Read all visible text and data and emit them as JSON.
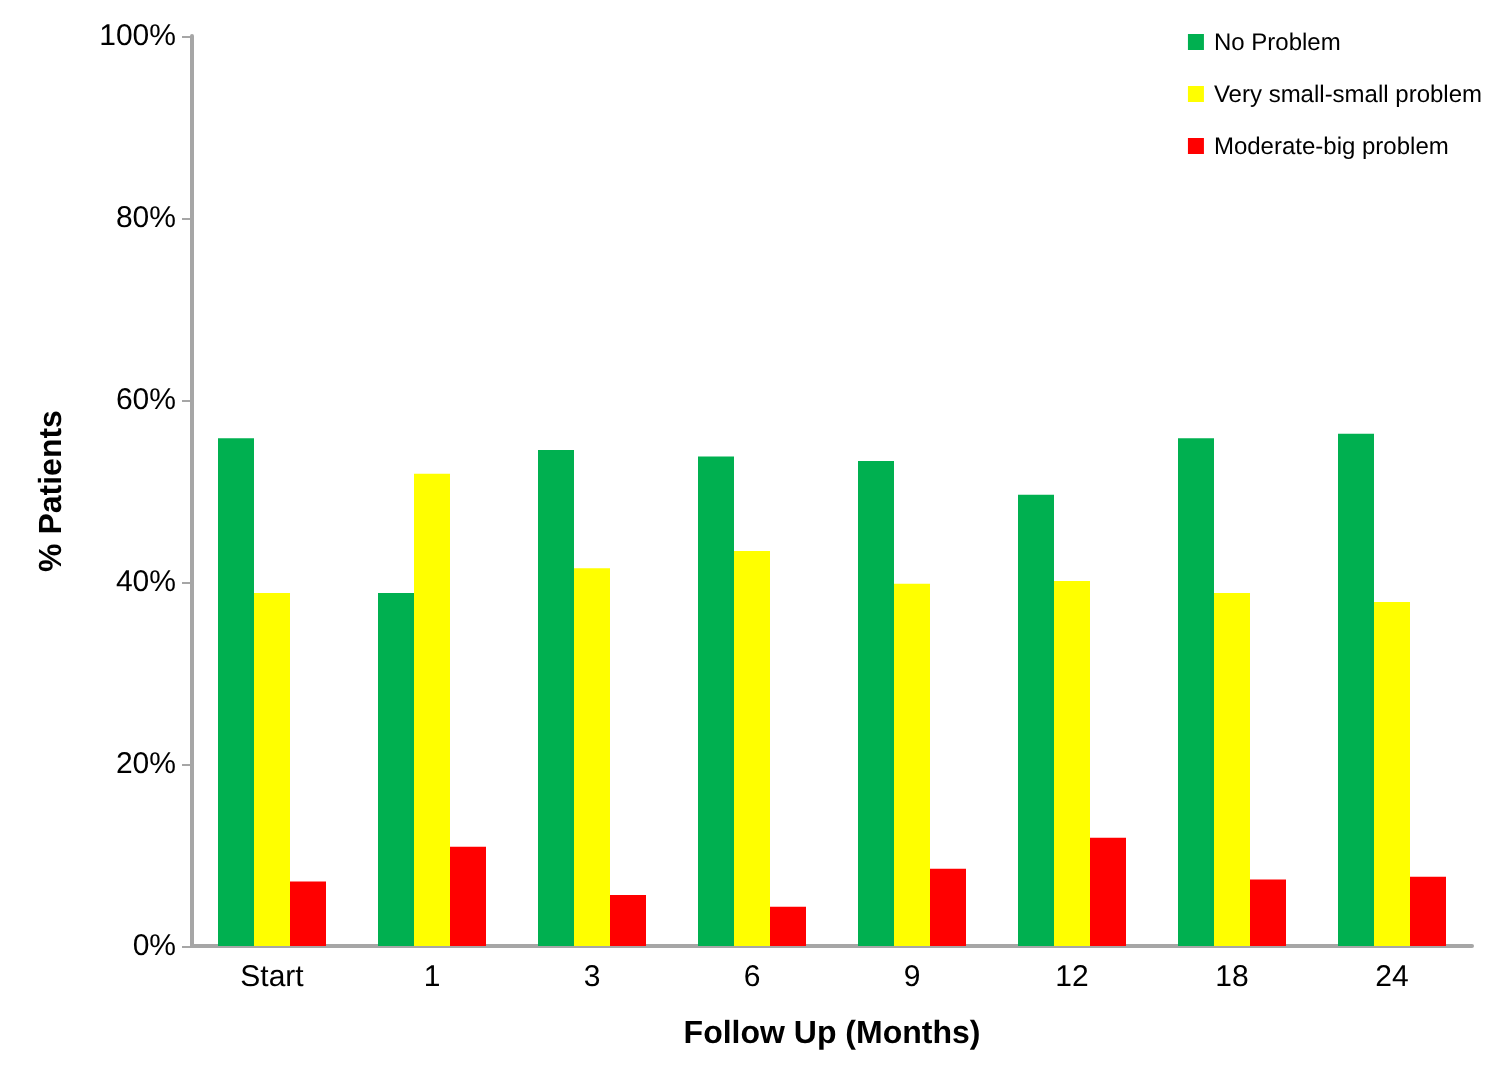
{
  "chart_data": {
    "type": "bar",
    "xlabel": "Follow Up (Months)",
    "ylabel": "% Patients",
    "categories": [
      "Start",
      "1",
      "3",
      "6",
      "9",
      "12",
      "18",
      "24"
    ],
    "series": [
      {
        "name": "No Problem",
        "color": "#00b050",
        "values": [
          55.8,
          38.8,
          54.5,
          53.8,
          53.3,
          49.6,
          55.8,
          56.3
        ]
      },
      {
        "name": "Very small-small problem",
        "color": "#ffff00",
        "values": [
          38.8,
          51.9,
          41.5,
          43.4,
          39.8,
          40.1,
          38.8,
          37.8
        ]
      },
      {
        "name": "Moderate-big problem",
        "color": "#ff0000",
        "values": [
          7.1,
          10.9,
          5.6,
          4.3,
          8.5,
          11.9,
          7.3,
          7.6
        ]
      }
    ],
    "ylim": [
      0,
      100
    ],
    "yticks": [
      {
        "value": 0,
        "label": "0%"
      },
      {
        "value": 20,
        "label": "20%"
      },
      {
        "value": 40,
        "label": "40%"
      },
      {
        "value": 60,
        "label": "60%"
      },
      {
        "value": 80,
        "label": "80%"
      },
      {
        "value": 100,
        "label": "100%"
      }
    ],
    "grid": false,
    "legend": "top right"
  }
}
